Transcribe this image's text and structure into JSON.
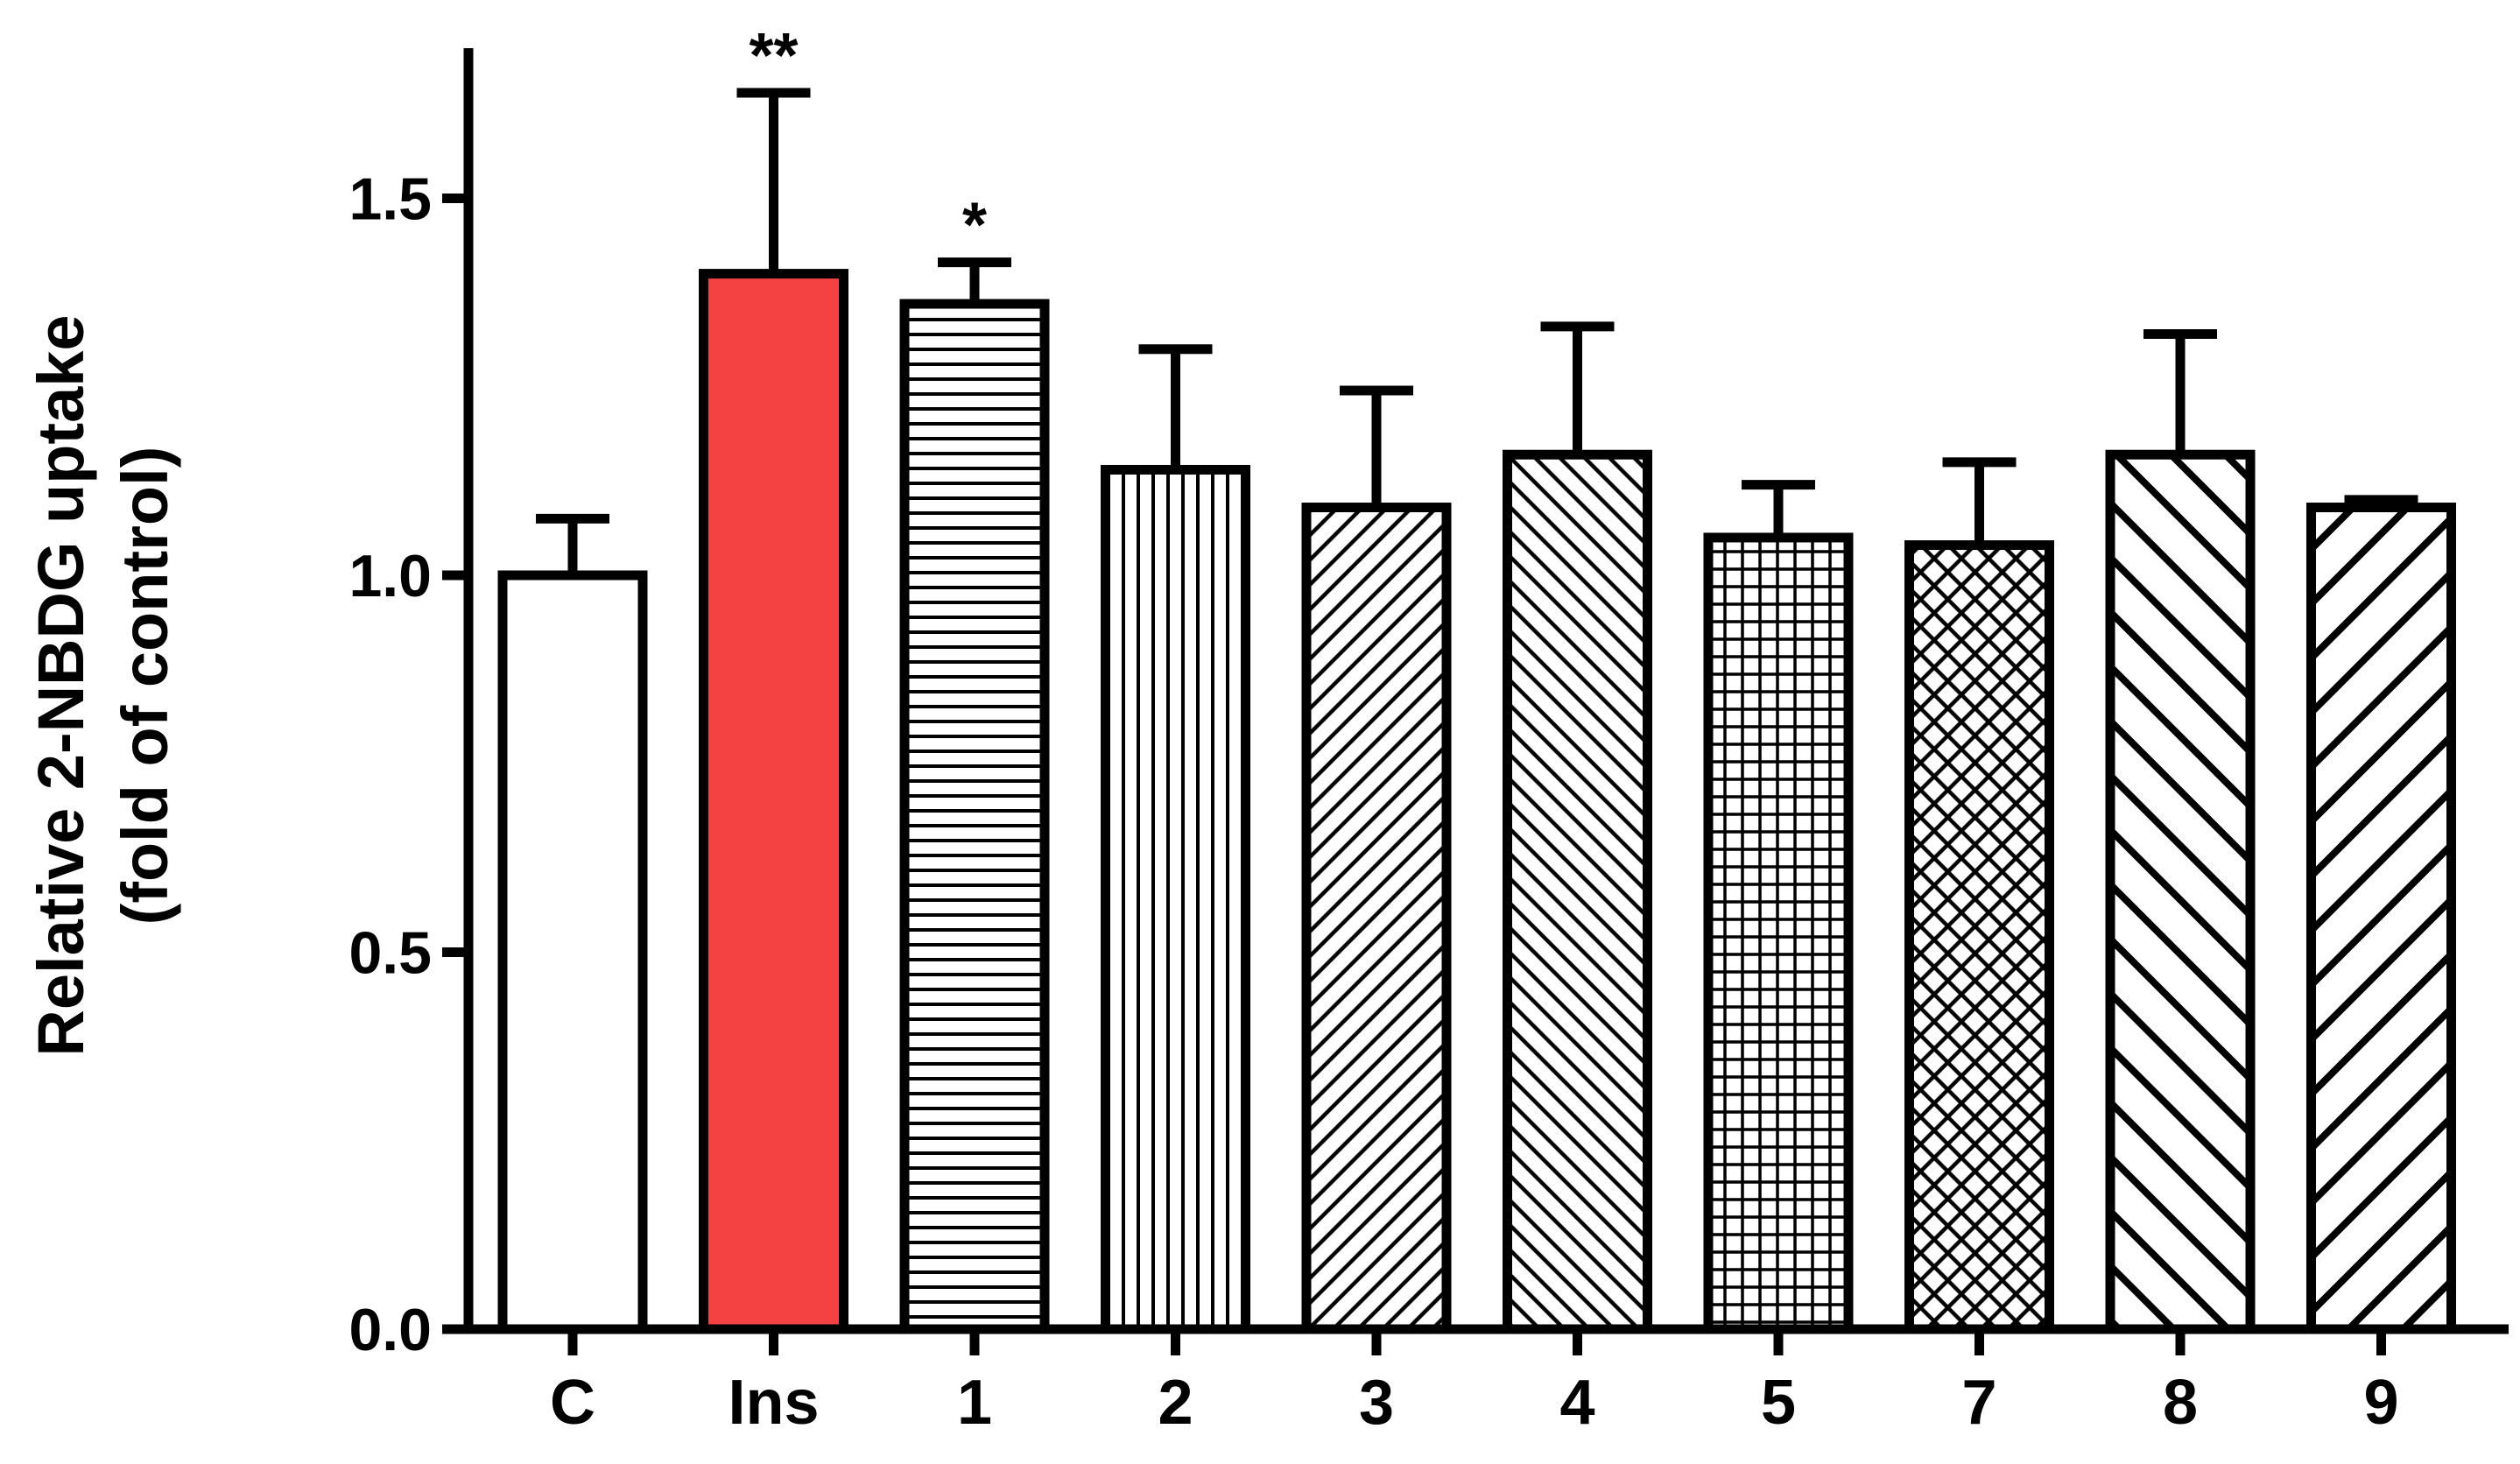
{
  "chart_data": {
    "type": "bar",
    "title": "",
    "xlabel": "",
    "ylabel_lines": [
      "Relative 2-NBDG uptake",
      "(fold of control)"
    ],
    "categories": [
      "C",
      "Ins",
      "1",
      "2",
      "3",
      "4",
      "5",
      "7",
      "8",
      "9"
    ],
    "values": [
      1.0,
      1.4,
      1.36,
      1.14,
      1.09,
      1.16,
      1.05,
      1.04,
      1.16,
      1.09
    ],
    "errors": [
      0.075,
      0.24,
      0.055,
      0.16,
      0.155,
      0.17,
      0.07,
      0.11,
      0.16,
      0.01
    ],
    "significance": [
      "",
      "**",
      "*",
      "",
      "",
      "",
      "",
      "",
      "",
      ""
    ],
    "fills": [
      {
        "pattern": "none",
        "color": "#ffffff"
      },
      {
        "pattern": "solid",
        "color": "#f44242"
      },
      {
        "pattern": "horizontal-lines",
        "color": "#ffffff"
      },
      {
        "pattern": "vertical-lines",
        "color": "#ffffff"
      },
      {
        "pattern": "diagonal-up-fine",
        "color": "#ffffff"
      },
      {
        "pattern": "diagonal-down-fine",
        "color": "#ffffff"
      },
      {
        "pattern": "grid",
        "color": "#ffffff"
      },
      {
        "pattern": "crosshatch",
        "color": "#ffffff"
      },
      {
        "pattern": "diagonal-down-wide",
        "color": "#ffffff"
      },
      {
        "pattern": "diagonal-up-wide",
        "color": "#ffffff"
      }
    ],
    "ylim": [
      0,
      1.7
    ],
    "yticks": [
      {
        "value": 0.0,
        "label": "0.0"
      },
      {
        "value": 0.5,
        "label": "0.5"
      },
      {
        "value": 1.0,
        "label": "1.0"
      },
      {
        "value": 1.5,
        "label": "1.5"
      }
    ],
    "grid": false,
    "legend": "none"
  }
}
